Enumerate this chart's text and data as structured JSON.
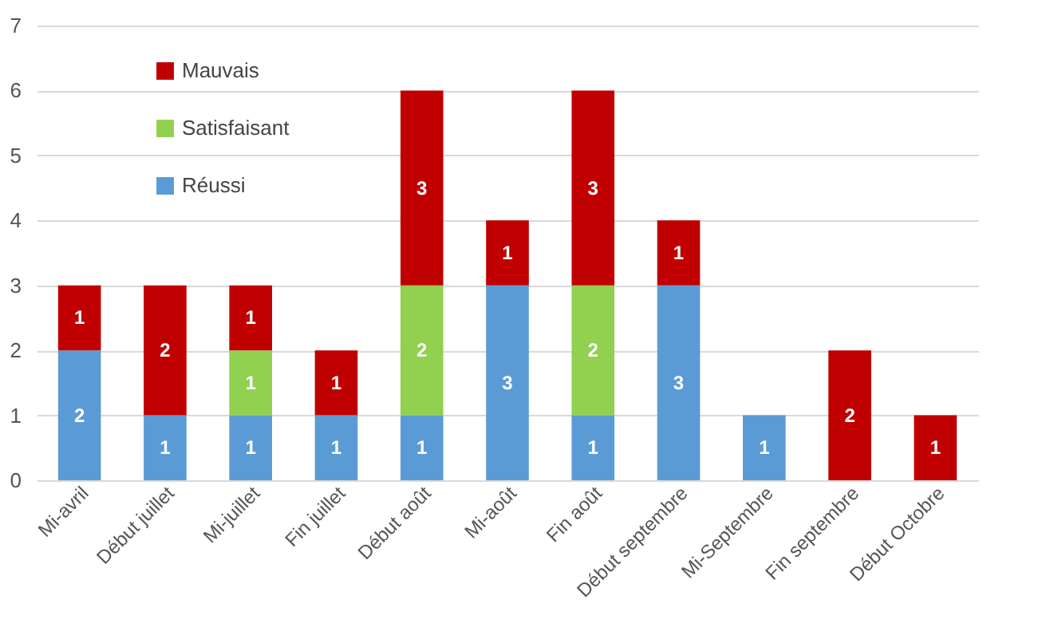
{
  "chart_data": {
    "type": "bar",
    "stacked": true,
    "data_labels": true,
    "legend": "top left",
    "grid": "y",
    "categories": [
      "Mi-avril",
      "Début juillet",
      "Mi-juillet",
      "Fin juillet",
      "Début août",
      "Mi-août",
      "Fin août",
      "Début septembre",
      "Mi-Septembre",
      "Fin septembre",
      "Début Octobre"
    ],
    "series": [
      {
        "name": "Réussi",
        "color": "#5b9bd5",
        "values": [
          2,
          1,
          1,
          1,
          1,
          3,
          1,
          3,
          1,
          null,
          null
        ]
      },
      {
        "name": "Satisfaisant",
        "color": "#92d050",
        "values": [
          null,
          null,
          1,
          null,
          2,
          null,
          2,
          null,
          null,
          null,
          null
        ]
      },
      {
        "name": "Mauvais",
        "color": "#c00000",
        "values": [
          1,
          2,
          1,
          1,
          3,
          1,
          3,
          1,
          null,
          2,
          1
        ]
      }
    ],
    "ylim": [
      0,
      7
    ],
    "yticks": [
      0,
      1,
      2,
      3,
      4,
      5,
      6,
      7
    ]
  }
}
